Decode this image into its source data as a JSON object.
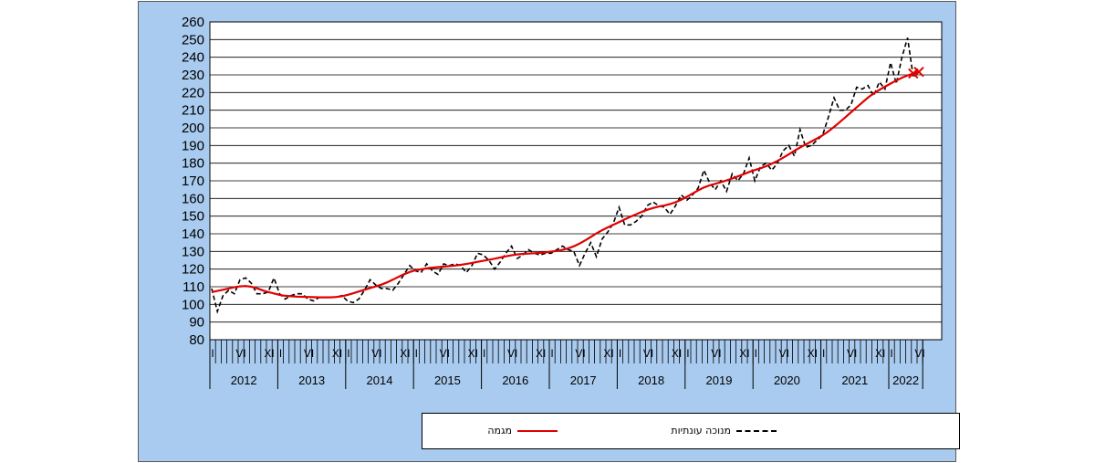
{
  "chart_data": {
    "type": "line",
    "ylim": [
      80,
      260
    ],
    "yticks": [
      80,
      90,
      100,
      110,
      120,
      130,
      140,
      150,
      160,
      170,
      180,
      190,
      200,
      210,
      220,
      230,
      240,
      250,
      260
    ],
    "years": [
      "2012",
      "2013",
      "2014",
      "2015",
      "2016",
      "2017",
      "2018",
      "2019",
      "2020",
      "2021",
      "2022"
    ],
    "month_labels": [
      "I",
      "VI",
      "XI"
    ],
    "grid": true,
    "legend_position": "bottom",
    "colors": {
      "seasonal": "#000000",
      "trend": "#e00000",
      "background": "#a9cbef",
      "plot_area": "#ffffff"
    },
    "series": [
      {
        "name": "מנוכה עונתיות",
        "style": "dashed",
        "values": [
          109,
          96,
          105,
          108,
          106,
          114,
          115,
          112,
          106,
          106,
          107,
          115,
          106,
          103,
          105,
          106,
          106,
          103,
          102,
          104,
          104,
          104,
          104,
          105,
          102,
          101,
          103,
          108,
          114,
          111,
          109,
          109,
          108,
          112,
          117,
          122,
          119,
          118,
          123,
          119,
          117,
          123,
          122,
          123,
          122,
          118,
          122,
          129,
          128,
          125,
          120,
          124,
          129,
          133,
          126,
          128,
          131,
          129,
          128,
          129,
          129,
          131,
          133,
          131,
          130,
          122,
          129,
          135,
          127,
          137,
          141,
          146,
          155,
          145,
          145,
          147,
          150,
          156,
          158,
          156,
          155,
          151,
          156,
          162,
          159,
          162,
          166,
          176,
          169,
          165,
          170,
          164,
          174,
          170,
          174,
          183,
          170,
          178,
          180,
          176,
          180,
          187,
          190,
          184,
          199,
          189,
          190,
          193,
          196,
          206,
          217,
          210,
          210,
          213,
          223,
          222,
          224,
          218,
          226,
          222,
          237,
          225,
          240,
          251,
          229,
          233
        ]
      },
      {
        "name": "מגמה",
        "style": "solid",
        "values": [
          107,
          107.6,
          108.3,
          109,
          109.7,
          110.2,
          110.4,
          110,
          109.1,
          108,
          107,
          106.2,
          105.4,
          104.9,
          104.6,
          104.4,
          104.3,
          104.2,
          104.1,
          104,
          104,
          104,
          104.2,
          104.6,
          105.4,
          106.3,
          107.3,
          108.3,
          109.3,
          110.2,
          111.2,
          112.5,
          114,
          115.6,
          117.1,
          118.4,
          119.3,
          119.9,
          120.4,
          120.8,
          121.1,
          121.4,
          121.7,
          122,
          122.4,
          122.9,
          123.5,
          124.1,
          124.7,
          125.3,
          125.9,
          126.6,
          127.2,
          127.8,
          128.3,
          128.6,
          128.8,
          129,
          129.2,
          129.5,
          129.9,
          130.3,
          130.9,
          131.7,
          132.9,
          134.4,
          136.2,
          138.2,
          140.2,
          142,
          143.6,
          145.1,
          146.6,
          148.1,
          149.6,
          151,
          152.4,
          153.6,
          154.6,
          155.4,
          156,
          156.8,
          157.9,
          159.3,
          161,
          162.8,
          164.6,
          166.2,
          167.4,
          168.3,
          169.2,
          170.2,
          171.3,
          172.5,
          173.7,
          175,
          176.1,
          177.1,
          178.3,
          179.7,
          181.3,
          183.1,
          185,
          187,
          188.9,
          190.6,
          192.3,
          194,
          195.8,
          198,
          200.5,
          203.2,
          206,
          208.8,
          211.6,
          214.4,
          217.1,
          219.5,
          221.5,
          223.3,
          225.1,
          226.8,
          228.4,
          229.7,
          230.8,
          231.7
        ]
      }
    ]
  },
  "legend": {
    "seasonal_label": "מנוכה עונתיות",
    "trend_label": "מגמה"
  }
}
